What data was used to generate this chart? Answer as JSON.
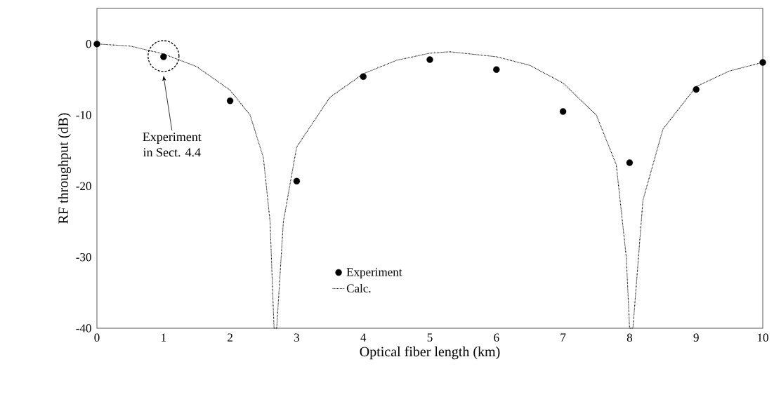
{
  "chart_data": {
    "type": "scatter",
    "xlabel": "Optical fiber length (km)",
    "ylabel": "RF throughput (dB)",
    "xlim": [
      0,
      10
    ],
    "ylim": [
      -40,
      5
    ],
    "xticks": [
      0,
      1,
      2,
      3,
      4,
      5,
      6,
      7,
      8,
      9,
      10
    ],
    "yticks": [
      -40,
      -30,
      -20,
      -10,
      0
    ],
    "legend": "bottom",
    "grid": false,
    "series": [
      {
        "name": "Experiment",
        "marker": "circle",
        "color": "#000000",
        "x": [
          0,
          1,
          2,
          3,
          4,
          5,
          6,
          7,
          8,
          9,
          10
        ],
        "values": [
          0,
          -1.8,
          -8,
          -19.3,
          -4.6,
          -2.2,
          -3.6,
          -9.5,
          -16.7,
          -6.4,
          -2.6
        ]
      },
      {
        "name": "Calc.",
        "type": "line",
        "marker": "none",
        "line_style": "dotted",
        "color": "#000000",
        "x": [
          0,
          0.5,
          1,
          1.5,
          2,
          2.3,
          2.5,
          2.6,
          2.66,
          2.7,
          2.8,
          3,
          3.5,
          4,
          4.5,
          5,
          5.3,
          6,
          6.5,
          7,
          7.5,
          7.8,
          7.95,
          8.0,
          8.05,
          8.2,
          8.5,
          9,
          9.5,
          10
        ],
        "values": [
          0,
          -0.3,
          -1.4,
          -3.2,
          -6.5,
          -10,
          -16,
          -25,
          -40,
          -40,
          -25,
          -14.5,
          -7.5,
          -4.2,
          -2.3,
          -1.3,
          -1.1,
          -1.8,
          -3,
          -5.5,
          -10,
          -17,
          -30,
          -40,
          -40,
          -22,
          -12,
          -6,
          -3.8,
          -2.6
        ]
      }
    ],
    "annotations": [
      "Experiment\nin Sect. 4.4"
    ]
  }
}
